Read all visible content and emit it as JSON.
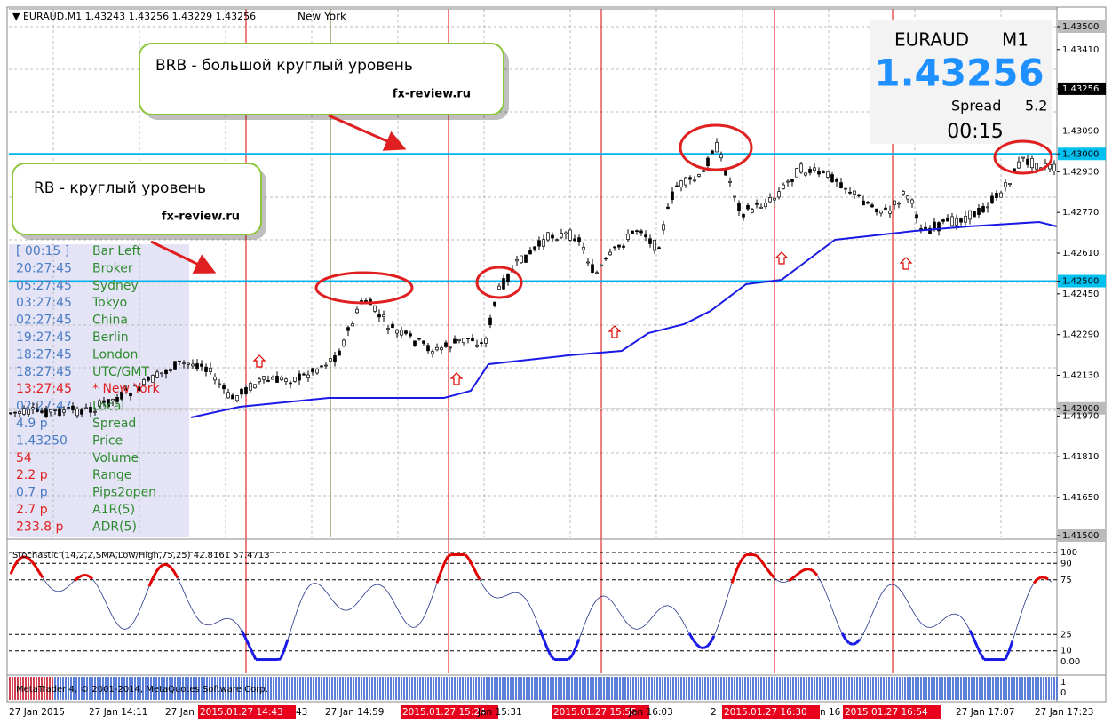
{
  "header": {
    "symbol_line": "▼ EURAUD,M1  1.43243 1.43256 1.43229 1.43256",
    "session": "New York"
  },
  "quote_box": {
    "symbol": "EURAUD",
    "timeframe": "M1",
    "price": "1.43256",
    "spread_label": "Spread",
    "spread": "5.2",
    "timer": "00:15"
  },
  "callouts": [
    {
      "title": "BRB - большой круглый уровень",
      "site": "fx-review.ru"
    },
    {
      "title": "RB - круглый уровень",
      "site": "fx-review.ru"
    }
  ],
  "price_axis": [
    {
      "label": "1.43500",
      "value": 1.435,
      "style": "grey"
    },
    {
      "label": "1.43410",
      "value": 1.4341
    },
    {
      "label": "1.43256",
      "value": 1.43256,
      "style": "black"
    },
    {
      "label": "1.43090",
      "value": 1.4309
    },
    {
      "label": "1.43000",
      "value": 1.43,
      "style": "cyan"
    },
    {
      "label": "1.42930",
      "value": 1.4293
    },
    {
      "label": "1.42770",
      "value": 1.4277
    },
    {
      "label": "1.42610",
      "value": 1.4261
    },
    {
      "label": "1.42500",
      "value": 1.425,
      "style": "cyan"
    },
    {
      "label": "1.42450",
      "value": 1.4245
    },
    {
      "label": "1.42290",
      "value": 1.4229
    },
    {
      "label": "1.42130",
      "value": 1.4213
    },
    {
      "label": "1.42000",
      "value": 1.42,
      "style": "grey"
    },
    {
      "label": "1.41970",
      "value": 1.4197
    },
    {
      "label": "1.41810",
      "value": 1.4181
    },
    {
      "label": "1.41650",
      "value": 1.4165
    },
    {
      "label": "1.41500",
      "value": 1.415,
      "style": "grey"
    }
  ],
  "info_panel": [
    {
      "value": "[ 00:15 ]",
      "label": "Bar Left",
      "vc": "blue"
    },
    {
      "value": "20:27:45",
      "label": "Broker",
      "vc": "blue"
    },
    {
      "value": "05:27:45",
      "label": "Sydney",
      "vc": "blue"
    },
    {
      "value": "03:27:45",
      "label": "Tokyo",
      "vc": "blue"
    },
    {
      "value": "02:27:45",
      "label": "China",
      "vc": "blue"
    },
    {
      "value": "19:27:45",
      "label": "Berlin",
      "vc": "blue"
    },
    {
      "value": "18:27:45",
      "label": "London",
      "vc": "blue"
    },
    {
      "value": "18:27:45",
      "label": "UTC/GMT",
      "vc": "blue"
    },
    {
      "value": "13:27:45",
      "label": "* New York",
      "vc": "red",
      "lc": "red"
    },
    {
      "value": "02:27:47",
      "label": "Local",
      "vc": "blue"
    },
    {
      "value": "4.9 p",
      "label": "Spread",
      "vc": "blue"
    },
    {
      "value": "1.43250",
      "label": "Price",
      "vc": "blue"
    },
    {
      "value": "54",
      "label": "Volume",
      "vc": "red"
    },
    {
      "value": "2.2 p",
      "label": "Range",
      "vc": "red"
    },
    {
      "value": "0.7 p",
      "label": "Pips2open",
      "vc": "blue"
    },
    {
      "value": "2.7 p",
      "label": "A1R(5)",
      "vc": "red"
    },
    {
      "value": "233.8 p",
      "label": "ADR(5)",
      "vc": "red"
    }
  ],
  "stochastic": {
    "title": "Stochastic (14,2,2,SMA,Low/High,75,25) 42.8161 57.4713",
    "axis": [
      {
        "label": "100",
        "value": 100
      },
      {
        "label": "90",
        "value": 90
      },
      {
        "label": "75",
        "value": 75
      },
      {
        "label": "25",
        "value": 25
      },
      {
        "label": "10",
        "value": 10
      },
      {
        "label": "0.00",
        "value": 0
      }
    ]
  },
  "volume": {
    "copyright": "MetaTrader 4, © 2001-2014, MetaQuotes Software Corp.",
    "axis": [
      "1",
      "0"
    ]
  },
  "time_axis": [
    {
      "label": "27 Jan 2015"
    },
    {
      "label": "27 Jan 14:11"
    },
    {
      "label": "27 Jan"
    },
    {
      "label": "2015.01.27 14:43",
      "highlight": true
    },
    {
      "label": "43"
    },
    {
      "label": "27 Jan 14:59"
    },
    {
      "label": "2015.01.27 15:24",
      "highlight": true
    },
    {
      "label": "Jan 15:31"
    },
    {
      "label": "2015.01.27 15:55",
      "highlight": true
    },
    {
      "label": "Jan 16:03"
    },
    {
      "label": "2",
      "highlight": false
    },
    {
      "label": "2015.01.27 16:30",
      "highlight": true
    },
    {
      "label": "n 16"
    },
    {
      "label": "2015.01.27 16:54",
      "highlight": true
    },
    {
      "label": "27 Jan 17:07"
    },
    {
      "label": "27 Jan 17:23"
    }
  ]
}
